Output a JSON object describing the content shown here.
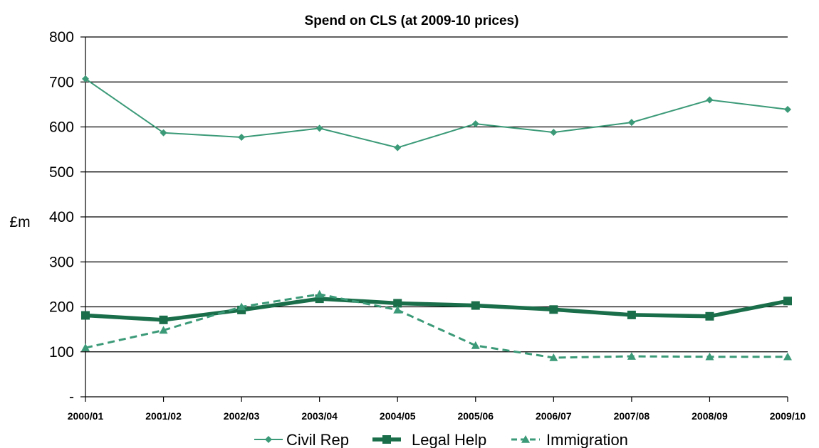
{
  "chart_data": {
    "type": "line",
    "title": "Spend on CLS (at 2009-10 prices)",
    "ylabel": "£m",
    "xlabel": "",
    "categories": [
      "2000/01",
      "2001/02",
      "2002/03",
      "2003/04",
      "2004/05",
      "2005/06",
      "2006/07",
      "2007/08",
      "2008/09",
      "2009/10"
    ],
    "ylim": [
      0,
      800
    ],
    "yticks": [
      0,
      100,
      200,
      300,
      400,
      500,
      600,
      700,
      800
    ],
    "ytick_labels": [
      "-",
      "100",
      "200",
      "300",
      "400",
      "500",
      "600",
      "700",
      "800"
    ],
    "grid": true,
    "legend_position": "bottom",
    "series": [
      {
        "name": "Civil Rep",
        "values": [
          707,
          587,
          577,
          597,
          554,
          607,
          588,
          610,
          660,
          639
        ],
        "color": "#3b9a78",
        "marker": "diamond",
        "line_style": "solid",
        "line_weight": "thin"
      },
      {
        "name": "Legal Help",
        "values": [
          181,
          171,
          193,
          218,
          208,
          203,
          194,
          182,
          179,
          213
        ],
        "color": "#1a6e4a",
        "marker": "square",
        "line_style": "solid",
        "line_weight": "thick"
      },
      {
        "name": "Immigration",
        "values": [
          109,
          148,
          200,
          228,
          193,
          114,
          87,
          90,
          89,
          89
        ],
        "color": "#3b9a78",
        "marker": "triangle",
        "line_style": "dashed",
        "line_weight": "medium"
      }
    ]
  }
}
